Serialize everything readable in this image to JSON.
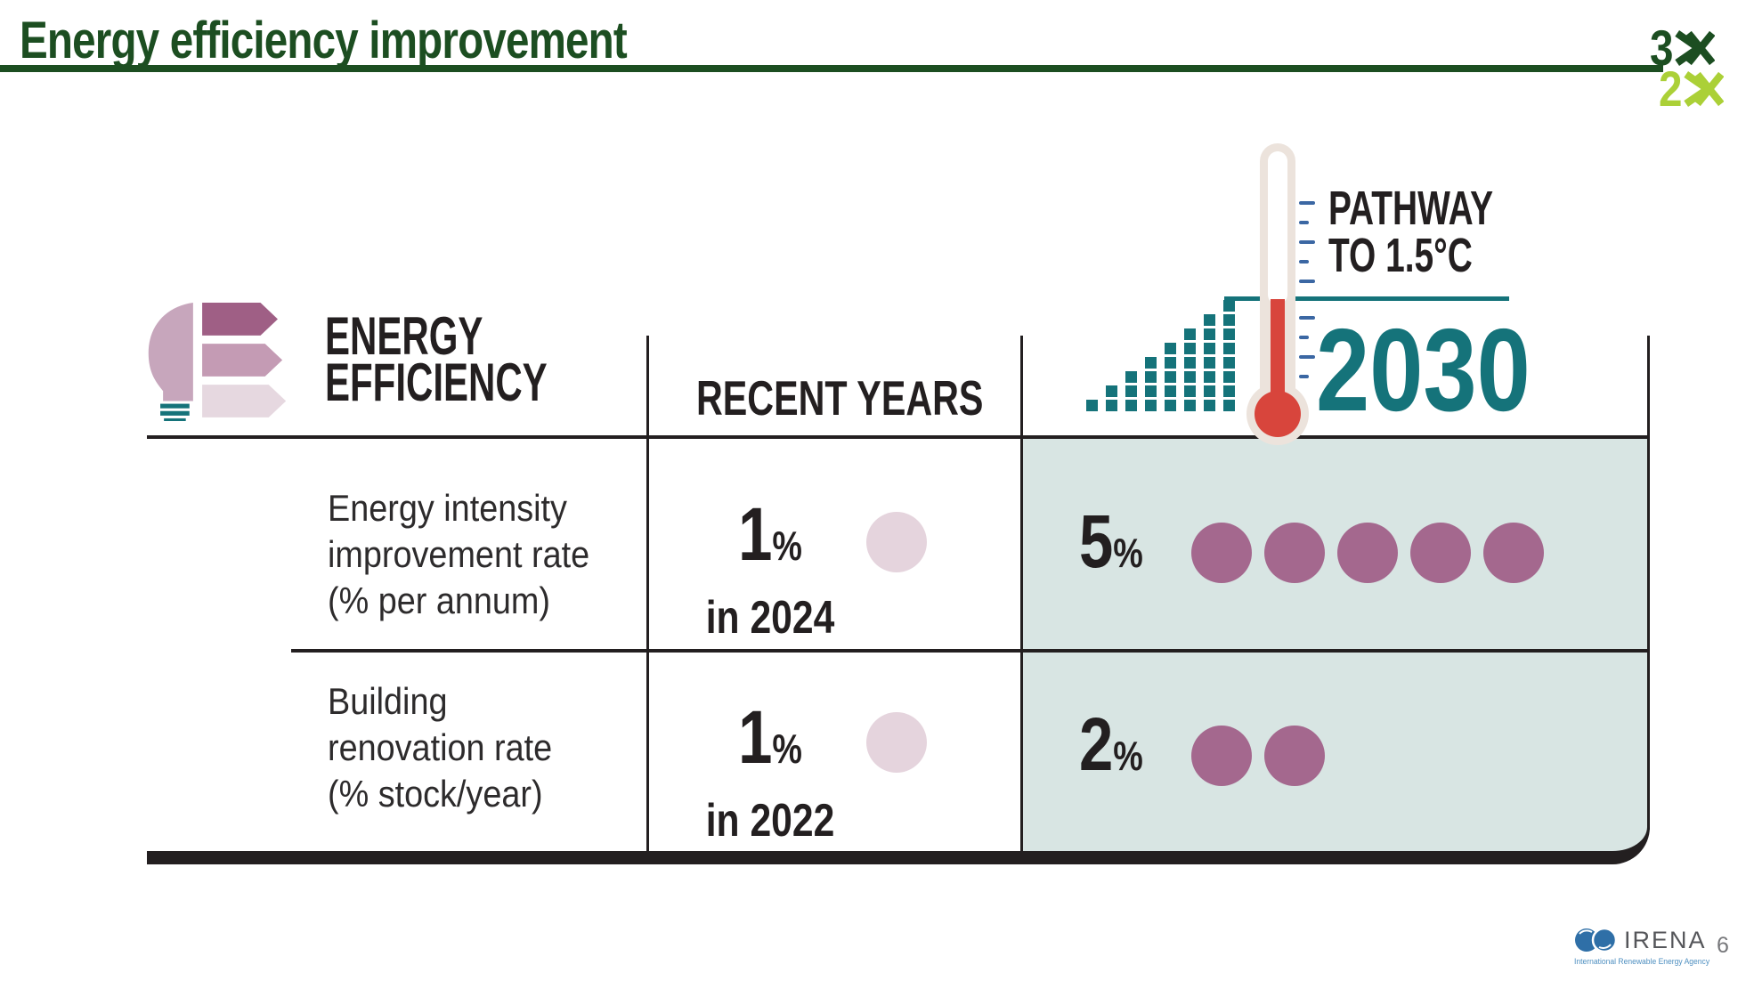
{
  "slide": {
    "title": "Energy efficiency improvement"
  },
  "brand_3x2x": {
    "line1_number": "3",
    "line2_number": "2"
  },
  "pathway": {
    "line1": "PATHWAY",
    "line2": "TO 1.5°C",
    "year": "2030",
    "bar_heights": [
      1,
      2,
      3,
      4,
      5,
      6,
      7,
      8
    ],
    "ticks_above": 5,
    "ticks_below": 4
  },
  "table": {
    "header": {
      "col1_line1": "ENERGY",
      "col1_line2": "EFFICIENCY",
      "col2": "RECENT YEARS"
    },
    "rows": [
      {
        "label_line1": "Energy intensity",
        "label_line2": "improvement rate",
        "label_line3": "(% per annum)",
        "recent": {
          "value": "1",
          "unit": "%",
          "caption": "in 2024",
          "dots": 1
        },
        "target_2030": {
          "value": "5",
          "unit": "%",
          "dots": 5
        }
      },
      {
        "label_line1": "Building",
        "label_line2": "renovation rate",
        "label_line3": "(% stock/year)",
        "recent": {
          "value": "1",
          "unit": "%",
          "caption": "in 2022",
          "dots": 1
        },
        "target_2030": {
          "value": "2",
          "unit": "%",
          "dots": 2
        }
      }
    ]
  },
  "footer": {
    "brand": "IRENA",
    "tagline": "International Renewable Energy Agency",
    "page_number": "6"
  },
  "colors": {
    "title_green": "#1c4e21",
    "lime": "#abd037",
    "teal": "#15737a",
    "teal_panel": "#d8e5e3",
    "tick_blue": "#3b67a3",
    "black": "#231f20",
    "red": "#d8453c",
    "cream": "#ece3dc",
    "mauve": "#a4688e",
    "pink_light": "#e5d4dd",
    "icon_bulb": "#c7a6bc",
    "icon_bar_dark": "#9f5f85",
    "icon_bar_mid": "#c49bb4",
    "icon_bar_light": "#e6d8e0",
    "irena_blue": "#2f6fa7"
  }
}
